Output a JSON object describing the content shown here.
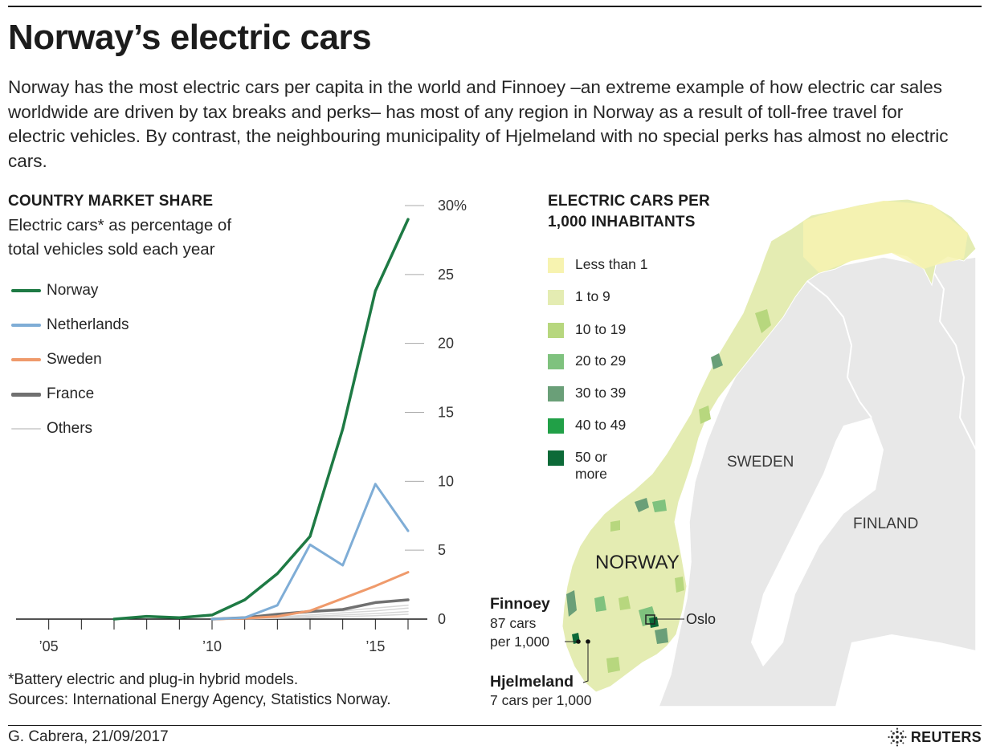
{
  "header": {
    "title": "Norway’s electric cars",
    "intro": "Norway has the most electric cars per capita in the world and Finnoey –an extreme example of how electric car sales worldwide are driven by tax breaks and perks– has most of any region in Norway as a result of toll-free travel for electric vehicles. By contrast, the neighbouring municipality of Hjelmeland with no special perks has almost no electric cars."
  },
  "left_panel": {
    "heading": "COUNTRY MARKET SHARE",
    "subheading_line1": "Electric cars* as percentage of",
    "subheading_line2": "total vehicles sold each year",
    "footnote": "*Battery electric and plug-in hybrid models.",
    "sources": "Sources: International Energy Agency, Statistics Norway."
  },
  "map_panel": {
    "heading_line1": "ELECTRIC CARS PER",
    "heading_line2": "1,000 INHABITANTS",
    "legend": [
      {
        "label": "Less than 1",
        "color": "#f7f3b0"
      },
      {
        "label": "1 to 9",
        "color": "#e4ecb2"
      },
      {
        "label": "10 to 19",
        "color": "#b7d77e"
      },
      {
        "label": "20 to 29",
        "color": "#7fc27e"
      },
      {
        "label": "30 to 39",
        "color": "#6a9f78"
      },
      {
        "label": "40 to 49",
        "color": "#21a047"
      },
      {
        "label": "50 or",
        "label2": "more",
        "color": "#0c6a38"
      }
    ],
    "labels": {
      "norway": "NORWAY",
      "sweden": "SWEDEN",
      "finland": "FINLAND",
      "oslo": "Oslo"
    },
    "callouts": {
      "finnoey_title": "Finnoey",
      "finnoey_line1": "87 cars",
      "finnoey_line2": "per 1,000",
      "hjelmeland_title": "Hjelmeland",
      "hjelmeland_line1": "7 cars per 1,000"
    },
    "land_color": "#e8e8e8",
    "border_color": "#ffffff"
  },
  "footer": {
    "credit": "G. Cabrera, 21/09/2017",
    "brand": "REUTERS"
  },
  "chart_data": {
    "type": "line",
    "title": "COUNTRY MARKET SHARE",
    "subtitle": "Electric cars* as percentage of total vehicles sold each year",
    "xlim": [
      2004,
      2016
    ],
    "ylim": [
      0,
      30
    ],
    "x_ticks": [
      2005,
      2010,
      2015
    ],
    "x_tick_labels": [
      "’05",
      "’10",
      "’15"
    ],
    "y_ticks": [
      0,
      5,
      10,
      15,
      20,
      25,
      30
    ],
    "y_tick_labels": [
      "0",
      "5",
      "10",
      "15",
      "20",
      "25",
      "30%"
    ],
    "legend_position": "left",
    "series": [
      {
        "name": "Others",
        "color": "#d6d6d6",
        "width": 1.5,
        "x": [
          2010,
          2011,
          2012,
          2013,
          2014,
          2015,
          2016
        ],
        "y": [
          0,
          0.05,
          0.15,
          0.3,
          0.45,
          0.6,
          0.8
        ]
      },
      {
        "name": "Others",
        "color": "#d6d6d6",
        "width": 1.5,
        "x": [
          2010,
          2011,
          2012,
          2013,
          2014,
          2015,
          2016
        ],
        "y": [
          0,
          0.02,
          0.1,
          0.2,
          0.3,
          0.4,
          0.55
        ]
      },
      {
        "name": "Others",
        "color": "#d6d6d6",
        "width": 1.5,
        "x": [
          2010,
          2011,
          2012,
          2013,
          2014,
          2015,
          2016
        ],
        "y": [
          0,
          0.01,
          0.05,
          0.1,
          0.18,
          0.25,
          0.35
        ]
      },
      {
        "name": "Others",
        "color": "#d6d6d6",
        "width": 1.5,
        "x": [
          2010,
          2011,
          2012,
          2013,
          2014,
          2015,
          2016
        ],
        "y": [
          0,
          0.1,
          0.3,
          0.5,
          0.6,
          0.8,
          1.0
        ]
      },
      {
        "name": "France",
        "color": "#707070",
        "width": 3.5,
        "x": [
          2010,
          2011,
          2012,
          2013,
          2014,
          2015,
          2016
        ],
        "y": [
          0,
          0.1,
          0.35,
          0.55,
          0.7,
          1.2,
          1.4
        ]
      },
      {
        "name": "Sweden",
        "color": "#ef9a6b",
        "width": 3,
        "x": [
          2010,
          2011,
          2012,
          2013,
          2014,
          2015,
          2016
        ],
        "y": [
          0,
          0.05,
          0.2,
          0.6,
          1.5,
          2.4,
          3.4
        ]
      },
      {
        "name": "Netherlands",
        "color": "#7fadd6",
        "width": 3,
        "x": [
          2010,
          2011,
          2012,
          2013,
          2014,
          2015,
          2016
        ],
        "y": [
          0,
          0.1,
          1.0,
          5.4,
          3.9,
          9.8,
          6.4
        ]
      },
      {
        "name": "Norway",
        "color": "#1e7a44",
        "width": 3.5,
        "x": [
          2007,
          2008,
          2009,
          2010,
          2011,
          2012,
          2013,
          2014,
          2015,
          2016
        ],
        "y": [
          0,
          0.2,
          0.1,
          0.3,
          1.4,
          3.3,
          6.0,
          13.8,
          23.8,
          29.0
        ]
      }
    ],
    "legend": [
      {
        "name": "Norway",
        "color": "#1e7a44"
      },
      {
        "name": "Netherlands",
        "color": "#7fadd6"
      },
      {
        "name": "Sweden",
        "color": "#ef9a6b"
      },
      {
        "name": "France",
        "color": "#707070"
      },
      {
        "name": "Others",
        "color": "#d6d6d6"
      }
    ]
  }
}
